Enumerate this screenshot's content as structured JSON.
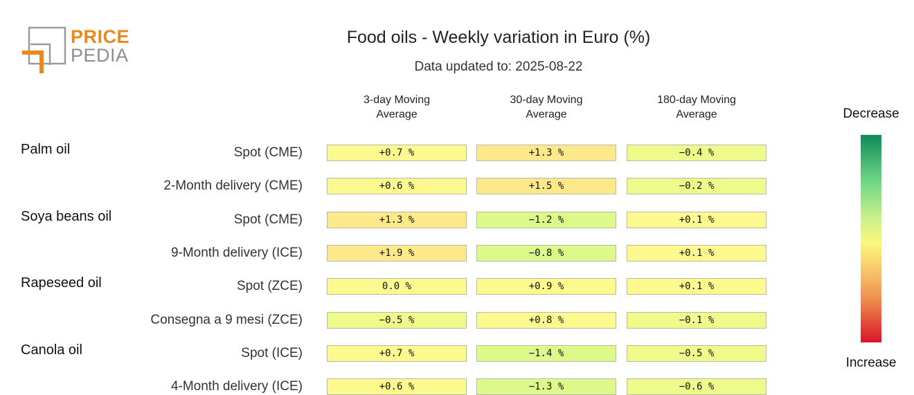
{
  "logo": {
    "top": "PRICE",
    "bottom": "PEDIA"
  },
  "chart_data": {
    "type": "table",
    "title": "Food oils - Weekly variation in Euro (%)",
    "subtitle": "Data updated to: 2025-08-22",
    "columns": [
      "3-day Moving Average",
      "30-day Moving Average",
      "180-day Moving Average"
    ],
    "column_lines": [
      [
        "3-day Moving",
        "Average"
      ],
      [
        "30-day Moving",
        "Average"
      ],
      [
        "180-day Moving",
        "Average"
      ]
    ],
    "groups": [
      "Palm oil",
      "Soya beans oil",
      "Rapeseed oil",
      "Canola oil"
    ],
    "rows": [
      {
        "group": "Palm oil",
        "label": "Spot (CME)",
        "values": [
          0.7,
          1.3,
          -0.4
        ],
        "display": [
          "+0.7 %",
          "+1.3 %",
          "−0.4 %"
        ]
      },
      {
        "group": "",
        "label": "2-Month delivery (CME)",
        "values": [
          0.6,
          1.5,
          -0.2
        ],
        "display": [
          "+0.6 %",
          "+1.5 %",
          "−0.2 %"
        ]
      },
      {
        "group": "Soya beans oil",
        "label": "Spot (CME)",
        "values": [
          1.3,
          -1.2,
          0.1
        ],
        "display": [
          "+1.3 %",
          "−1.2 %",
          "+0.1 %"
        ]
      },
      {
        "group": "",
        "label": "9-Month delivery (ICE)",
        "values": [
          1.9,
          -0.8,
          0.1
        ],
        "display": [
          "+1.9 %",
          "−0.8 %",
          "+0.1 %"
        ]
      },
      {
        "group": "Rapeseed oil",
        "label": "Spot (ZCE)",
        "values": [
          0.0,
          0.9,
          0.1
        ],
        "display": [
          "0.0 %",
          "+0.9 %",
          "+0.1 %"
        ]
      },
      {
        "group": "",
        "label": "Consegna a 9 mesi (ZCE)",
        "values": [
          -0.5,
          0.8,
          -0.1
        ],
        "display": [
          "−0.5 %",
          "+0.8 %",
          "−0.1 %"
        ]
      },
      {
        "group": "Canola oil",
        "label": "Spot (ICE)",
        "values": [
          0.7,
          -1.4,
          -0.5
        ],
        "display": [
          "+0.7 %",
          "−1.4 %",
          "−0.5 %"
        ]
      },
      {
        "group": "",
        "label": "4-Month delivery (ICE)",
        "values": [
          0.6,
          -1.3,
          -0.6
        ],
        "display": [
          "+0.6 %",
          "−1.3 %",
          "−0.6 %"
        ]
      }
    ],
    "legend": {
      "top_label": "Decrease",
      "bottom_label": "Increase",
      "top_color": "#0f8a5a",
      "bottom_color": "#d8142a"
    }
  }
}
